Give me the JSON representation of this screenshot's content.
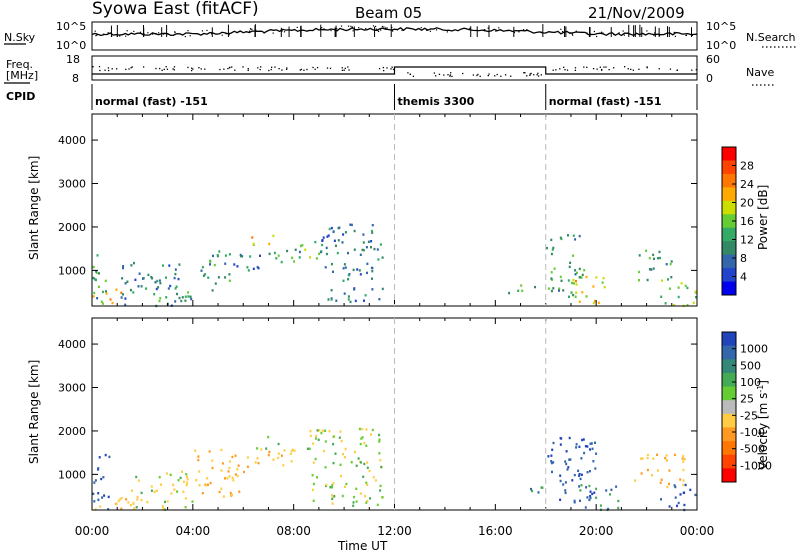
{
  "header": {
    "station": "Syowa East (fitACF)",
    "beam": "Beam 05",
    "date": "21/Nov/2009"
  },
  "top_panels": {
    "nsky_label": "N.Sky",
    "nsky_ticks": [
      "10^5",
      "10^0"
    ],
    "nsearch_label": "N.Search",
    "nsearch_ticks": [
      "10^5",
      "10^0"
    ],
    "freq_label_line1": "Freq.",
    "freq_label_line2": "[MHz]",
    "freq_ticks": [
      "18",
      "8"
    ],
    "nave_label": "Nave",
    "nave_ticks": [
      "60",
      "0"
    ],
    "cpid_label": "CPID",
    "cpid_segments": [
      {
        "label": "normal (fast) -151",
        "start_hr": 0,
        "end_hr": 12
      },
      {
        "label": "themis 3300",
        "start_hr": 12,
        "end_hr": 18
      },
      {
        "label": "normal (fast) -151",
        "start_hr": 18,
        "end_hr": 24
      }
    ]
  },
  "power_colorbar": {
    "label": "Power [dB]",
    "ticks": [
      "28",
      "24",
      "20",
      "16",
      "12",
      "8",
      "4"
    ],
    "colors": [
      "#ff0000",
      "#ff4400",
      "#ff7700",
      "#ffaa00",
      "#ccdd00",
      "#66cc33",
      "#33aa66",
      "#338866",
      "#3366aa",
      "#2244cc",
      "#0000ee"
    ]
  },
  "velocity_colorbar": {
    "label": "Velocity [m s^-1]",
    "label_main": "Velocity [m s",
    "label_sup": "-1",
    "label_end": "]",
    "ticks": [
      "1000",
      "500",
      "100",
      "25",
      "-25",
      "-100",
      "-500",
      "-1000"
    ],
    "colors": [
      "#2244bb",
      "#3366aa",
      "#338877",
      "#44aa55",
      "#66cc33",
      "#bbbbbb",
      "#ffcc44",
      "#ff9922",
      "#ff7700",
      "#ff4400",
      "#ff0000"
    ]
  },
  "chart_data": {
    "type": "heatmap",
    "x_ticks": [
      "00:00",
      "04:00",
      "08:00",
      "12:00",
      "16:00",
      "20:00",
      "00:00"
    ],
    "xlabel": "Time UT",
    "xlim_hours": [
      0,
      24
    ],
    "y_ticks": [
      "1000",
      "2000",
      "3000",
      "4000"
    ],
    "ylabel": "Slant Range [km]",
    "ylim_km": [
      180,
      4600
    ],
    "mode_change_hours": [
      12,
      18
    ],
    "panels": [
      {
        "name": "Power",
        "units": "dB",
        "clusters": [
          {
            "t0": 0.0,
            "t1": 0.6,
            "r0": 300,
            "r1": 1500,
            "value": 12
          },
          {
            "t0": 0.0,
            "t1": 1.2,
            "r0": 180,
            "r1": 600,
            "value": 20
          },
          {
            "t0": 1.0,
            "t1": 3.5,
            "r0": 200,
            "r1": 1200,
            "value": 8
          },
          {
            "t0": 2.5,
            "t1": 4.0,
            "r0": 200,
            "r1": 700,
            "value": 12
          },
          {
            "t0": 4.3,
            "t1": 5.5,
            "r0": 500,
            "r1": 1500,
            "value": 12
          },
          {
            "t0": 5.5,
            "t1": 6.8,
            "r0": 900,
            "r1": 1400,
            "value": 8
          },
          {
            "t0": 6.3,
            "t1": 7.2,
            "r0": 1600,
            "r1": 1900,
            "value": 20
          },
          {
            "t0": 7.0,
            "t1": 8.5,
            "r0": 1200,
            "r1": 1600,
            "value": 12
          },
          {
            "t0": 8.0,
            "t1": 9.0,
            "r0": 1300,
            "r1": 1700,
            "value": 16
          },
          {
            "t0": 9.0,
            "t1": 11.5,
            "r0": 300,
            "r1": 2100,
            "value": 8
          },
          {
            "t0": 16.5,
            "t1": 17.8,
            "r0": 500,
            "r1": 700,
            "value": 12
          },
          {
            "t0": 18.0,
            "t1": 19.5,
            "r0": 400,
            "r1": 1900,
            "value": 12
          },
          {
            "t0": 19.0,
            "t1": 20.3,
            "r0": 200,
            "r1": 900,
            "value": 20
          },
          {
            "t0": 21.5,
            "t1": 23.0,
            "r0": 800,
            "r1": 1500,
            "value": 12
          },
          {
            "t0": 22.5,
            "t1": 24.0,
            "r0": 200,
            "r1": 800,
            "value": 16
          }
        ]
      },
      {
        "name": "Velocity",
        "units": "m/s",
        "clusters": [
          {
            "t0": 0.0,
            "t1": 0.7,
            "r0": 200,
            "r1": 1500,
            "value": 500
          },
          {
            "t0": 0.0,
            "t1": 2.0,
            "r0": 180,
            "r1": 500,
            "value": -100
          },
          {
            "t0": 1.5,
            "t1": 4.0,
            "r0": 200,
            "r1": 1100,
            "value": -25
          },
          {
            "t0": 4.0,
            "t1": 6.0,
            "r0": 500,
            "r1": 1600,
            "value": -100
          },
          {
            "t0": 6.0,
            "t1": 8.5,
            "r0": 1200,
            "r1": 1600,
            "value": -100
          },
          {
            "t0": 6.5,
            "t1": 7.5,
            "r0": 1600,
            "r1": 1900,
            "value": 25
          },
          {
            "t0": 8.5,
            "t1": 11.5,
            "r0": 300,
            "r1": 2100,
            "value": -25
          },
          {
            "t0": 16.5,
            "t1": 18.0,
            "r0": 550,
            "r1": 750,
            "value": 100
          },
          {
            "t0": 18.0,
            "t1": 20.0,
            "r0": 300,
            "r1": 1900,
            "value": 500
          },
          {
            "t0": 19.0,
            "t1": 21.0,
            "r0": 200,
            "r1": 800,
            "value": 100
          },
          {
            "t0": 21.5,
            "t1": 23.5,
            "r0": 700,
            "r1": 1500,
            "value": -100
          },
          {
            "t0": 22.5,
            "t1": 24.0,
            "r0": 200,
            "r1": 800,
            "value": 500
          }
        ]
      }
    ]
  }
}
